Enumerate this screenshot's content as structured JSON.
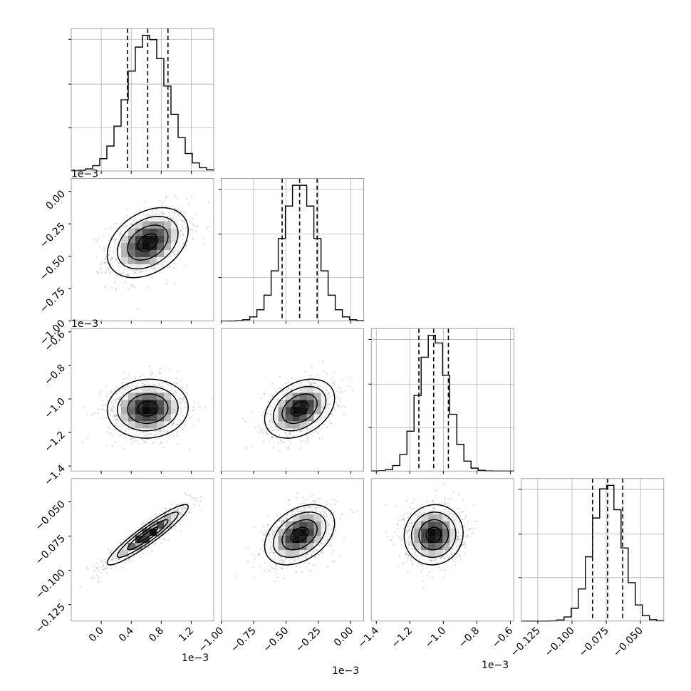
{
  "chart_data": {
    "type": "corner",
    "grid": true,
    "parameters": [
      {
        "range": [
          -0.0004,
          0.0015
        ],
        "ticks": [
          0.0,
          0.0004,
          0.0008,
          0.0012
        ],
        "tick_labels": [
          "0.0",
          "0.4",
          "0.8",
          "1.2"
        ],
        "offset_label": "1e−3",
        "mean": 0.00062,
        "sd": 0.00027,
        "quantiles": [
          0.00035,
          0.00062,
          0.00089
        ]
      },
      {
        "range": [
          -0.001,
          0.0001
        ],
        "ticks": [
          -0.001,
          -0.00075,
          -0.0005,
          -0.00025,
          0.0
        ],
        "tick_labels": [
          "−1.00",
          "−0.75",
          "−0.50",
          "−0.25",
          "0.00"
        ],
        "offset_label": "1e−3",
        "mean": -0.000395,
        "sd": 0.000135,
        "quantiles": [
          -0.00053,
          -0.000395,
          -0.00026
        ]
      },
      {
        "range": [
          -0.00143,
          -0.00058
        ],
        "ticks": [
          -0.0014,
          -0.0012,
          -0.001,
          -0.0008,
          -0.0006
        ],
        "tick_labels": [
          "−1.4",
          "−1.2",
          "−1.0",
          "−0.8",
          "−0.6"
        ],
        "offset_label": "1e−3",
        "mean": -0.001058,
        "sd": 8.8e-05,
        "quantiles": [
          -0.001146,
          -0.001058,
          -0.00097
        ]
      },
      {
        "range": [
          -0.137,
          -0.033
        ],
        "ticks": [
          -0.125,
          -0.1,
          -0.075,
          -0.05
        ],
        "tick_labels": [
          "−0.125",
          "−0.100",
          "−0.075",
          "−0.050"
        ],
        "offset_label": "",
        "mean": -0.074,
        "sd": 0.011,
        "quantiles": [
          -0.085,
          -0.074,
          -0.063
        ]
      }
    ],
    "correlations": [
      [
        1.0,
        0.35,
        0.05,
        0.93
      ],
      [
        0.35,
        1.0,
        0.35,
        0.38
      ],
      [
        0.05,
        0.35,
        1.0,
        0.05
      ],
      [
        0.93,
        0.38,
        0.05,
        1.0
      ]
    ],
    "contour_levels_sigma": [
      0.5,
      1.0,
      1.5,
      2.0
    ],
    "histogram_bins": 20
  }
}
